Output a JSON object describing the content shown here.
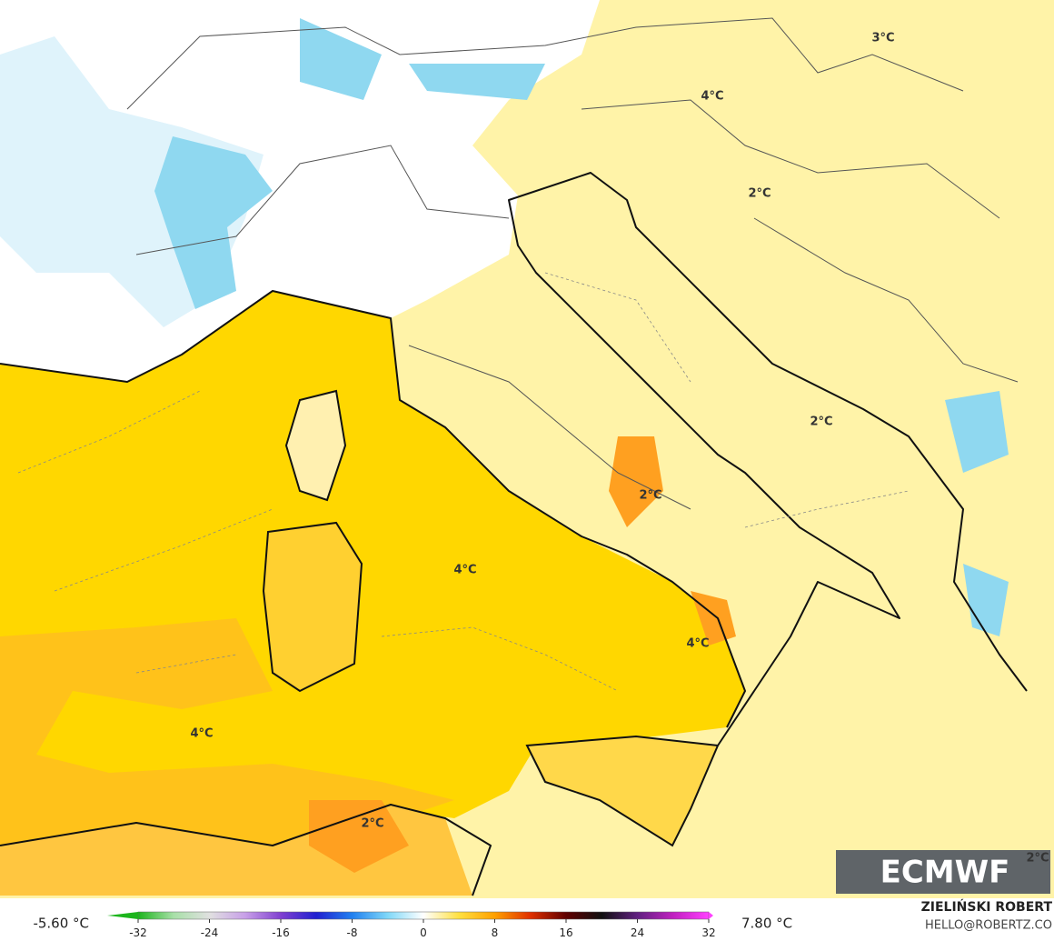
{
  "map": {
    "contour_labels": [
      "4°C",
      "3°C",
      "2°C",
      "2°C",
      "2°C",
      "4°C",
      "4°C",
      "4°C",
      "2°C",
      "2°C"
    ]
  },
  "logo": "ECMWF",
  "colorbar": {
    "min_label": "-5.60 °C",
    "max_label": "7.80 °C",
    "ticks": [
      -32,
      -24,
      -16,
      -8,
      0,
      8,
      16,
      24,
      32
    ],
    "stops": [
      {
        "value": -32,
        "color": "#1db51d"
      },
      {
        "value": -28,
        "color": "#a8e0a8"
      },
      {
        "value": -24,
        "color": "#e0e0e0"
      },
      {
        "value": -20,
        "color": "#c8a0e8"
      },
      {
        "value": -16,
        "color": "#8040d0"
      },
      {
        "value": -12,
        "color": "#2020d0"
      },
      {
        "value": -8,
        "color": "#2080f0"
      },
      {
        "value": -4,
        "color": "#80d8f8"
      },
      {
        "value": 0,
        "color": "#ffffff"
      },
      {
        "value": 4,
        "color": "#ffe040"
      },
      {
        "value": 8,
        "color": "#ffa000"
      },
      {
        "value": 12,
        "color": "#e03000"
      },
      {
        "value": 16,
        "color": "#600000"
      },
      {
        "value": 20,
        "color": "#101010"
      },
      {
        "value": 24,
        "color": "#602080"
      },
      {
        "value": 28,
        "color": "#c020c0"
      },
      {
        "value": 32,
        "color": "#ff40ff"
      }
    ]
  },
  "credits": {
    "author": "ZIELIŃSKI ROBERT",
    "contact": "HELLO@ROBERTZ.CO"
  }
}
